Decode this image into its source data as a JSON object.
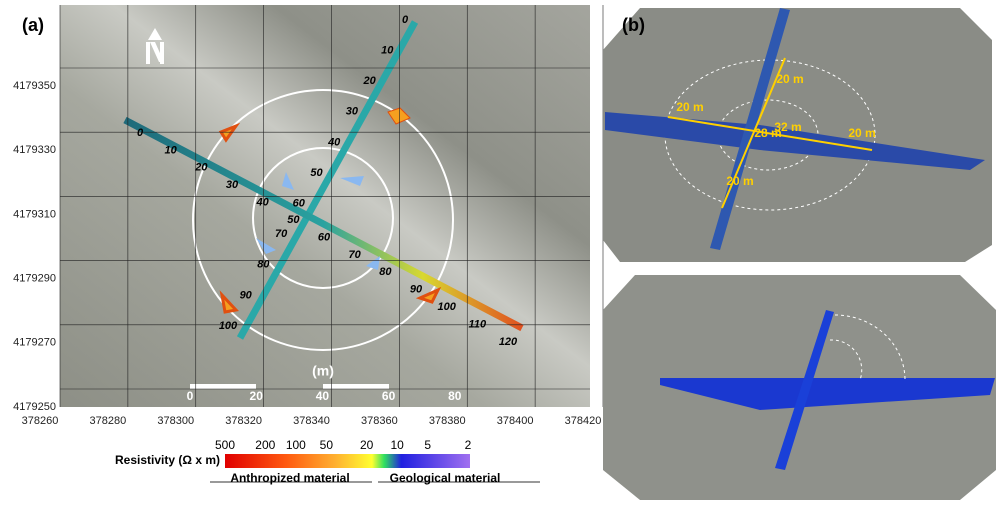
{
  "panel_a": {
    "label": "(a)",
    "xticks": [
      378260,
      378280,
      378300,
      378320,
      378340,
      378360,
      378380,
      378400,
      378420
    ],
    "yticks": [
      4179350,
      4179330,
      4179310,
      4179290,
      4179270,
      4179250
    ],
    "scale_bar": {
      "ticks": [
        0,
        20,
        40,
        60,
        80
      ],
      "unit": "(m)"
    },
    "profile_1_labels": [
      0,
      10,
      20,
      30,
      40,
      50,
      60,
      70,
      80,
      90,
      100
    ],
    "profile_2_labels": [
      0,
      10,
      20,
      30,
      40,
      50,
      60,
      70,
      80,
      90,
      100,
      110,
      120
    ]
  },
  "panel_b": {
    "label": "(b)",
    "labels": [
      "20 m",
      "20 m",
      "20 m",
      "20 m",
      "28 m",
      "32 m"
    ]
  },
  "legend": {
    "title": "Resistivity (Ω x m)",
    "ticks": [
      500,
      200,
      100,
      50,
      20,
      10,
      5,
      2
    ],
    "left_note": "Anthropized material",
    "right_note": "Geological material"
  }
}
